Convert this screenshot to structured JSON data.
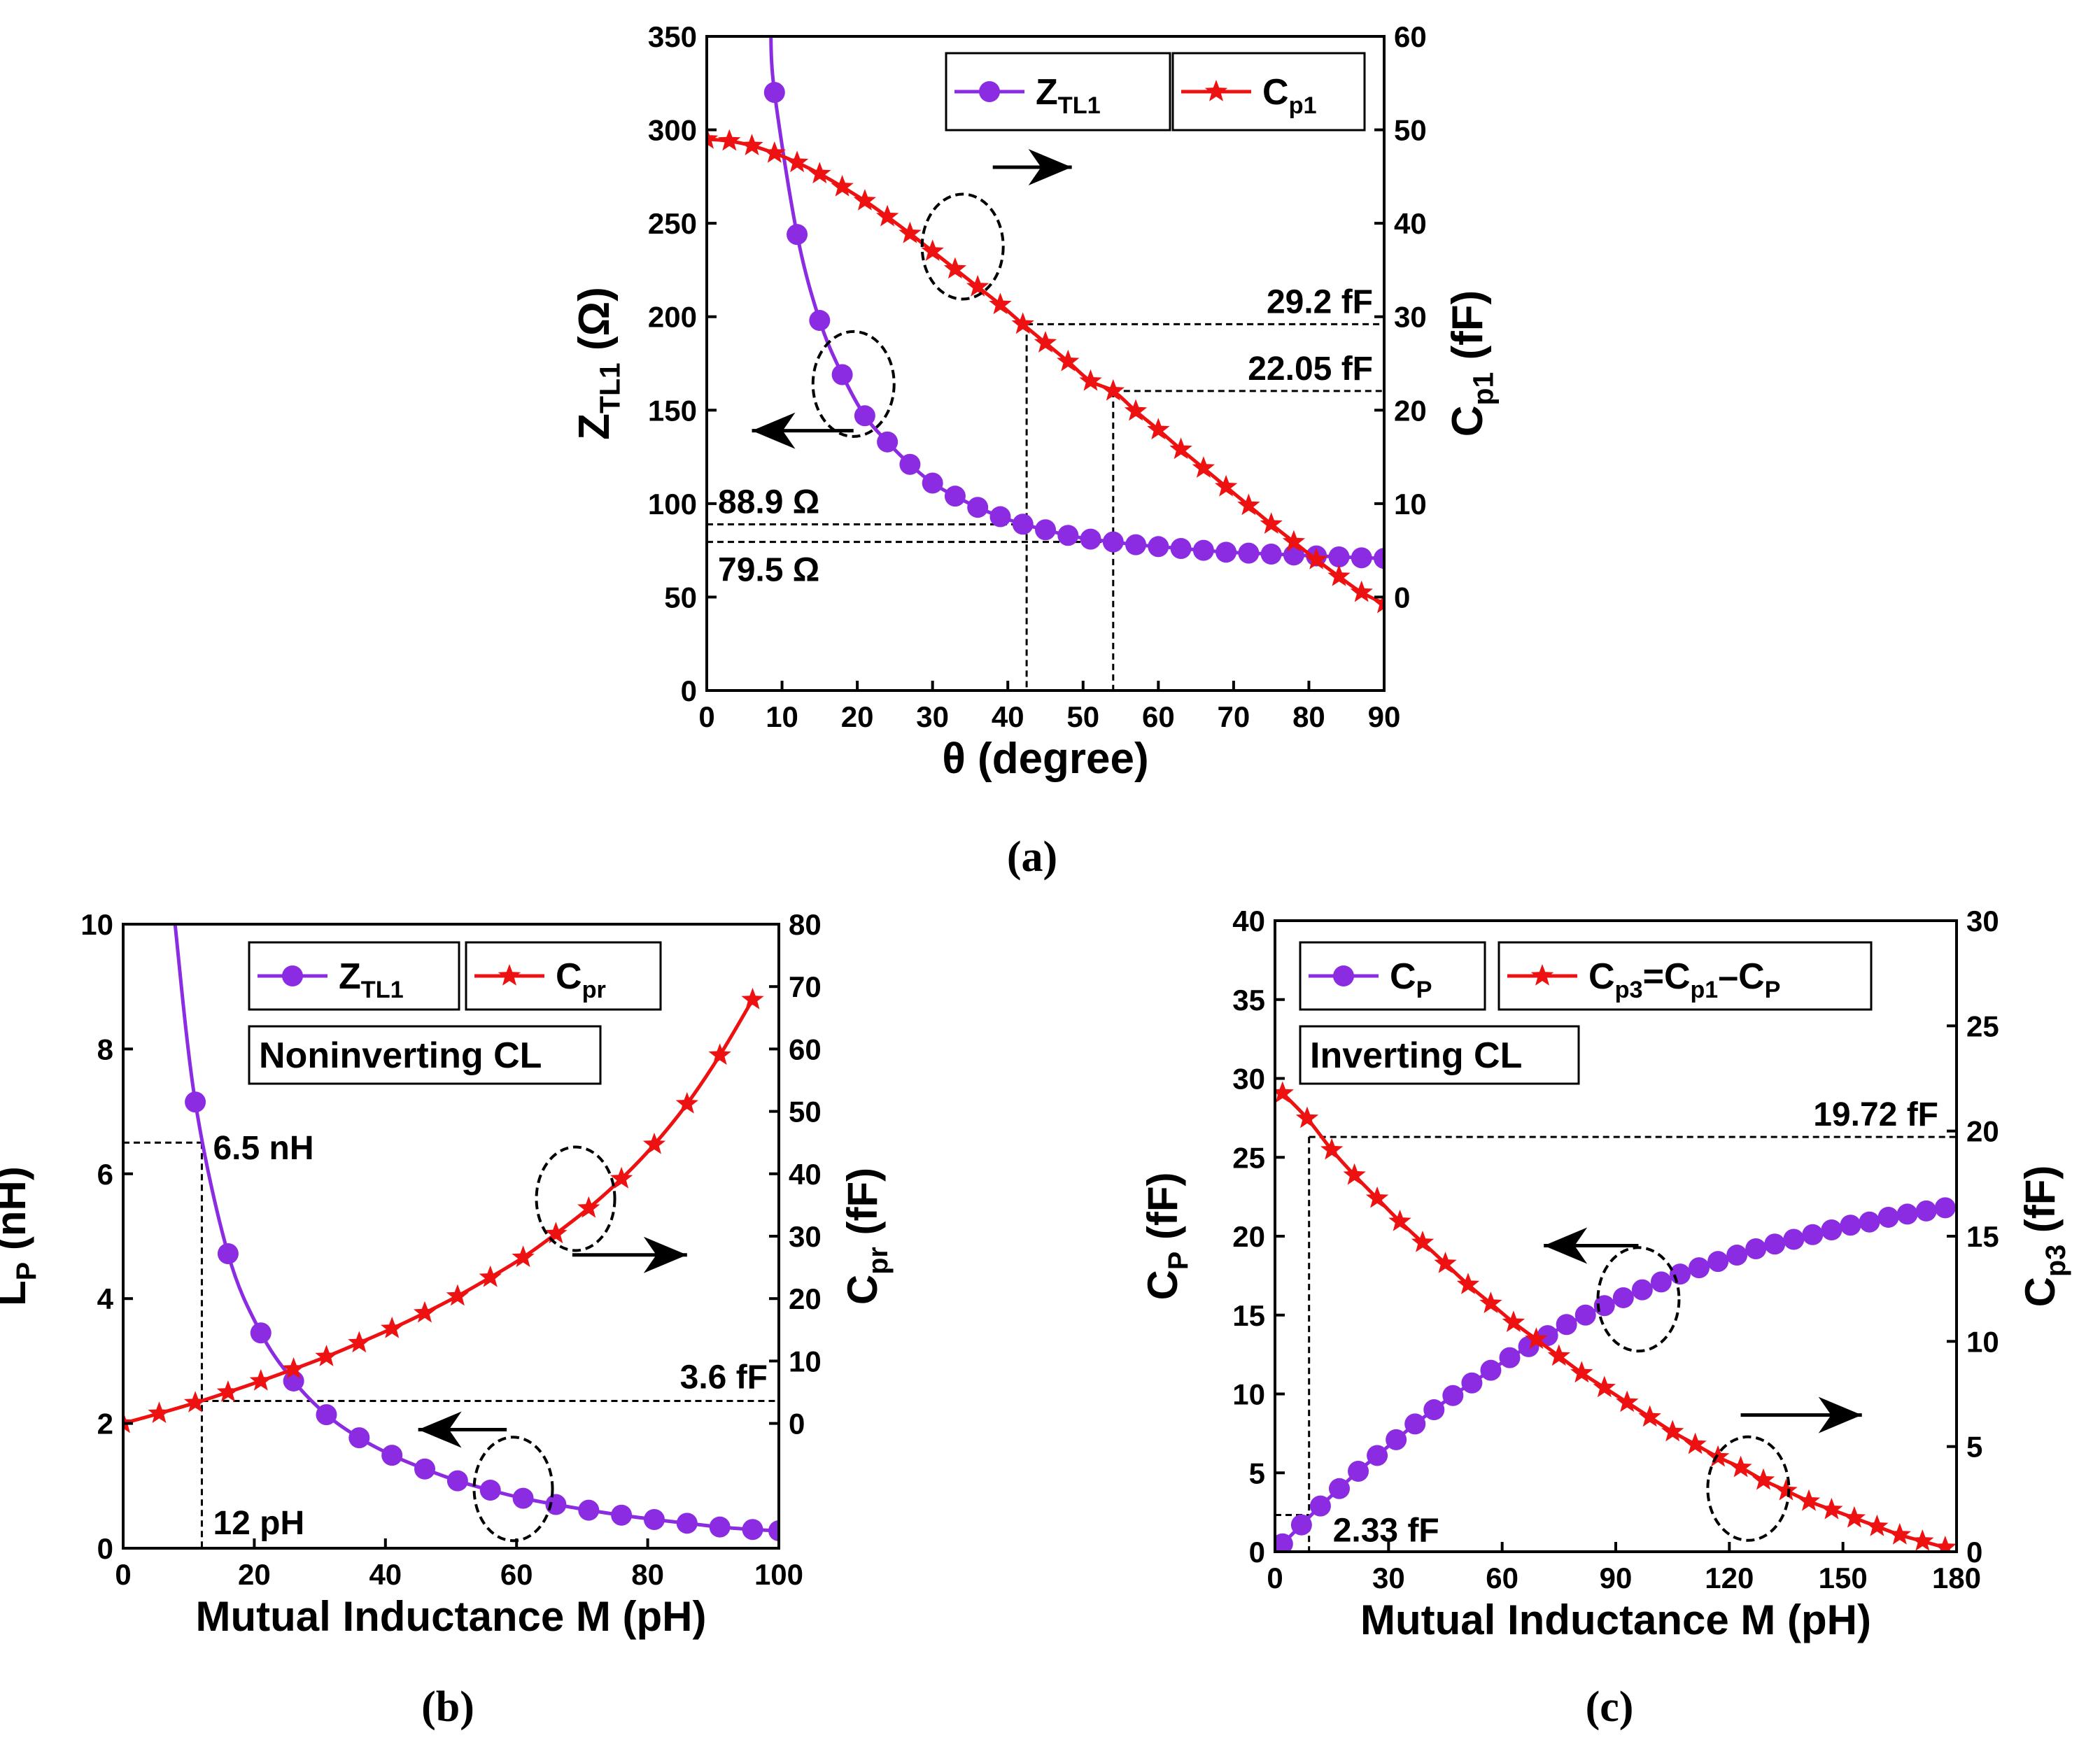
{
  "colors": {
    "purple": "#8b2be2",
    "red": "#ee1111",
    "black": "#000000"
  },
  "chart_data": [
    {
      "id": "a",
      "type": "line",
      "caption": "(a)",
      "xlabel": "θ (degree)",
      "ylabel_left": {
        "main": "Z",
        "sub": "TL1",
        "rest": " (Ω)"
      },
      "ylabel_right": {
        "main": "C",
        "sub": "p1",
        "rest": " (fF)"
      },
      "xlim": [
        0,
        90
      ],
      "ylim_left": [
        0,
        350
      ],
      "ylim_right": [
        -10,
        60
      ],
      "xticks": [
        0,
        10,
        20,
        30,
        40,
        50,
        60,
        70,
        80,
        90
      ],
      "yticks_left": [
        0,
        50,
        100,
        150,
        200,
        250,
        300,
        350
      ],
      "yticks_right": [
        0,
        10,
        20,
        30,
        40,
        50,
        60
      ],
      "series": [
        {
          "name": "Z_TL1",
          "legend_main": "Z",
          "legend_sub": "TL1",
          "axis": "left",
          "color": "purple",
          "marker": "circle",
          "x": [
            9,
            12,
            15,
            18,
            21,
            24,
            27,
            30,
            33,
            36,
            39,
            42,
            45,
            48,
            51,
            54,
            57,
            60,
            63,
            66,
            69,
            72,
            75,
            78,
            81,
            84,
            87,
            90
          ],
          "y": [
            320,
            244,
            198,
            169,
            147,
            133,
            121,
            111,
            104,
            98,
            93,
            89,
            86,
            83,
            81,
            79.5,
            78,
            77,
            76,
            75,
            74,
            73.5,
            73,
            72.5,
            72,
            71.5,
            71,
            70.7
          ]
        },
        {
          "name": "C_p1",
          "legend_main": "C",
          "legend_sub": "p1",
          "axis": "right",
          "color": "red",
          "marker": "star",
          "x": [
            0,
            3,
            6,
            9,
            12,
            15,
            18,
            21,
            24,
            27,
            30,
            33,
            36,
            39,
            42,
            45,
            48,
            51,
            54,
            57,
            60,
            63,
            66,
            69,
            72,
            75,
            78,
            81,
            84,
            87,
            90
          ],
          "y": [
            49.0,
            48.8,
            48.3,
            47.5,
            46.5,
            45.3,
            43.9,
            42.4,
            40.7,
            38.9,
            37.0,
            35.1,
            33.2,
            31.3,
            29.2,
            27.2,
            25.2,
            23.1,
            22.05,
            19.9,
            17.9,
            15.8,
            13.8,
            11.8,
            9.8,
            7.8,
            5.9,
            4.0,
            2.2,
            0.5,
            -0.7
          ]
        }
      ],
      "annotations": [
        {
          "text": "29.2 fF"
        },
        {
          "text": "22.05 fF"
        },
        {
          "text": "88.9 Ω"
        },
        {
          "text": "79.5 Ω"
        }
      ]
    },
    {
      "id": "b",
      "type": "line",
      "caption": "(b)",
      "xlabel": "Mutual Inductance M (pH)",
      "ylabel_left": {
        "main": "L",
        "sub": "P",
        "rest": " (nH)"
      },
      "ylabel_right": {
        "main": "C",
        "sub": "pr",
        "rest": " (fF)"
      },
      "xlim": [
        0,
        100
      ],
      "ylim_left": [
        0,
        10
      ],
      "ylim_right": [
        -20,
        80
      ],
      "xticks": [
        0,
        20,
        40,
        60,
        80,
        100
      ],
      "yticks_left": [
        0,
        2,
        4,
        6,
        8,
        10
      ],
      "yticks_right": [
        0,
        10,
        20,
        30,
        40,
        50,
        60,
        70,
        80
      ],
      "legend_box": "Noninverting CL",
      "series": [
        {
          "name": "Z_TL1",
          "legend_main": "Z",
          "legend_sub": "TL1",
          "axis": "left",
          "color": "purple",
          "marker": "circle",
          "x": [
            11,
            16,
            21,
            26,
            31,
            36,
            41,
            46,
            51,
            56,
            61,
            66,
            71,
            76,
            81,
            86,
            91,
            96,
            100
          ],
          "y": [
            7.15,
            4.72,
            3.45,
            2.68,
            2.14,
            1.77,
            1.49,
            1.27,
            1.08,
            0.93,
            0.8,
            0.7,
            0.61,
            0.53,
            0.46,
            0.4,
            0.34,
            0.3,
            0.28
          ]
        },
        {
          "name": "C_pr",
          "legend_main": "C",
          "legend_sub": "pr",
          "axis": "right",
          "color": "red",
          "marker": "star",
          "x": [
            0,
            5.5,
            11,
            16,
            21,
            26,
            31,
            36,
            41,
            46,
            51,
            56,
            61,
            66,
            71,
            76,
            81,
            86,
            91,
            96
          ],
          "y": [
            0,
            1.6,
            3.3,
            5.0,
            6.8,
            8.7,
            10.7,
            12.9,
            15.2,
            17.7,
            20.4,
            23.4,
            26.6,
            30.4,
            34.5,
            39.2,
            44.7,
            51.2,
            59.0,
            67.9
          ]
        }
      ],
      "annotations": [
        {
          "text": "6.5 nH"
        },
        {
          "text": "3.6 fF"
        },
        {
          "text": "12 pH"
        }
      ]
    },
    {
      "id": "c",
      "type": "line",
      "caption": "(c)",
      "xlabel": "Mutual Inductance M (pH)",
      "ylabel_left": {
        "main": "C",
        "sub": "P",
        "rest": " (fF)"
      },
      "ylabel_right": {
        "main": "C",
        "sub": "p3",
        "rest": " (fF)"
      },
      "xlim": [
        0,
        180
      ],
      "ylim_left": [
        0,
        40
      ],
      "ylim_right": [
        0,
        30
      ],
      "xticks": [
        0,
        30,
        60,
        90,
        120,
        150,
        180
      ],
      "yticks_left": [
        0,
        5,
        10,
        15,
        20,
        25,
        30,
        35,
        40
      ],
      "yticks_right": [
        0,
        5,
        10,
        15,
        20,
        25,
        30
      ],
      "legend_box": "Inverting CL",
      "series": [
        {
          "name": "C_P",
          "legend_main": "C",
          "legend_sub": "P",
          "axis": "left",
          "color": "purple",
          "marker": "circle",
          "x": [
            2,
            7,
            12,
            17,
            22,
            27,
            32,
            37,
            42,
            47,
            52,
            57,
            62,
            67,
            72,
            77,
            82,
            87,
            92,
            97,
            102,
            107,
            112,
            117,
            122,
            127,
            132,
            137,
            142,
            147,
            152,
            157,
            162,
            167,
            172,
            177
          ],
          "y": [
            0.5,
            1.7,
            2.9,
            4.0,
            5.1,
            6.1,
            7.1,
            8.1,
            9.0,
            9.9,
            10.7,
            11.5,
            12.3,
            13.0,
            13.7,
            14.4,
            15.0,
            15.6,
            16.1,
            16.6,
            17.1,
            17.6,
            18.0,
            18.4,
            18.8,
            19.2,
            19.5,
            19.8,
            20.1,
            20.4,
            20.7,
            20.9,
            21.2,
            21.4,
            21.6,
            21.8
          ]
        },
        {
          "name": "C_p3",
          "legend_main": "C",
          "legend_sub": "p3",
          "legend_rest_main": "=C",
          "legend_rest_sub": "p1",
          "legend_rest2_main": "–C",
          "legend_rest2_sub": "P",
          "axis": "right",
          "color": "red",
          "marker": "star",
          "x": [
            2,
            8.5,
            15,
            21,
            27,
            33,
            39,
            45,
            51,
            57,
            63,
            69,
            75,
            81,
            87,
            93,
            99,
            105,
            111,
            117,
            123,
            129,
            135,
            141,
            147,
            153,
            159,
            165,
            171,
            177
          ],
          "y": [
            21.8,
            20.6,
            19.1,
            17.9,
            16.8,
            15.7,
            14.7,
            13.7,
            12.7,
            11.8,
            10.9,
            10.1,
            9.3,
            8.5,
            7.8,
            7.1,
            6.4,
            5.7,
            5.1,
            4.5,
            4.0,
            3.4,
            2.9,
            2.4,
            2.0,
            1.6,
            1.2,
            0.8,
            0.5,
            0.2
          ]
        }
      ],
      "annotations": [
        {
          "text": "19.72 fF"
        },
        {
          "text": "2.33 fF"
        }
      ]
    }
  ]
}
